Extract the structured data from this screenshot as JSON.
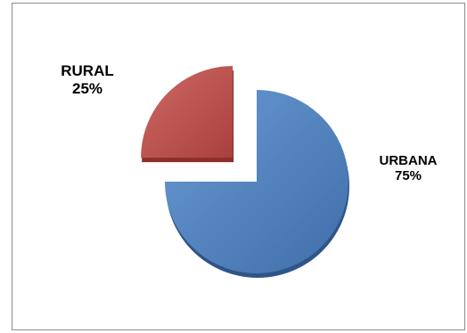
{
  "chart_data": {
    "type": "pie",
    "title": "",
    "slices": [
      {
        "label": "URBANA",
        "percent_label": "75%",
        "value": 75,
        "color": "#4f81bd"
      },
      {
        "label": "RURAL",
        "percent_label": "25%",
        "value": 25,
        "color": "#c0504d",
        "exploded": true
      }
    ],
    "legend": "none"
  }
}
